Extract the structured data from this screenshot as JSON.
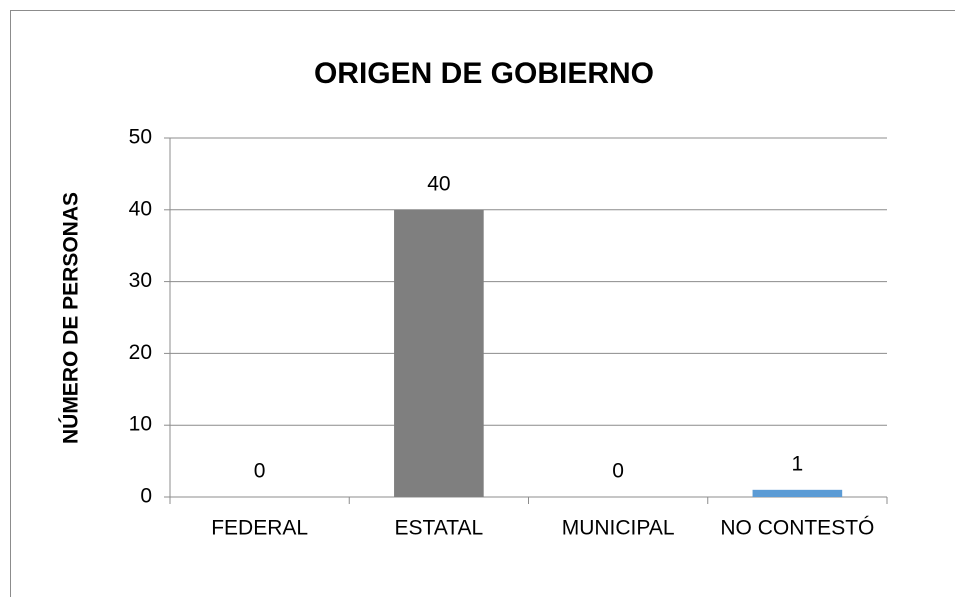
{
  "chart_data": {
    "type": "bar",
    "title": "ORIGEN DE GOBIERNO",
    "y_label": "NÚMERO DE PERSONAS",
    "categories": [
      "FEDERAL",
      "ESTATAL",
      "MUNICIPAL",
      "NO CONTESTÓ"
    ],
    "values": [
      0,
      40,
      0,
      1
    ],
    "colors": [
      "#7f7f7f",
      "#7f7f7f",
      "#5b9bd5",
      "#5b9bd5"
    ],
    "ylim": [
      0,
      50
    ],
    "yticks": [
      0,
      10,
      20,
      30,
      40,
      50
    ],
    "grid": true,
    "data_labels": true
  }
}
